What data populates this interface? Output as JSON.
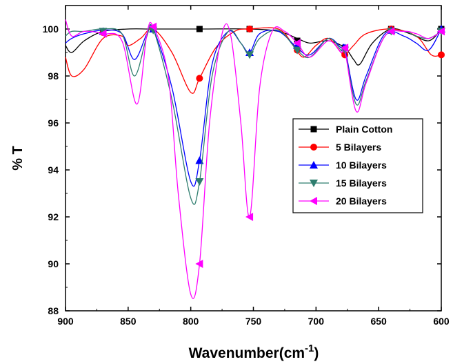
{
  "chart_data": {
    "type": "line",
    "title": "",
    "xlabel": "Wavenumber(cm",
    "xlabel_sup": "-1",
    "xlabel_close": ")",
    "ylabel": "% T",
    "xlim": [
      900,
      600
    ],
    "ylim": [
      88,
      101
    ],
    "x_ticks": [
      900,
      850,
      800,
      750,
      700,
      650,
      600
    ],
    "y_ticks": [
      88,
      90,
      92,
      94,
      96,
      98,
      100
    ],
    "grid": false,
    "legend_position": "center-right",
    "series": [
      {
        "name": "Plain Cotton",
        "color": "#000000",
        "marker": "square",
        "points": [
          [
            900,
            99.3
          ],
          [
            895,
            99.0
          ],
          [
            885,
            99.5
          ],
          [
            870,
            99.9
          ],
          [
            850,
            100.0
          ],
          [
            830,
            100.0
          ],
          [
            793,
            100.0
          ],
          [
            753,
            100.0
          ],
          [
            730,
            99.9
          ],
          [
            715,
            99.6
          ],
          [
            705,
            99.4
          ],
          [
            690,
            99.5
          ],
          [
            677,
            99.2
          ],
          [
            670,
            98.7
          ],
          [
            665,
            98.5
          ],
          [
            655,
            99.4
          ],
          [
            640,
            100.0
          ],
          [
            625,
            99.8
          ],
          [
            610,
            99.5
          ],
          [
            600,
            100.0
          ]
        ],
        "markers": [
          [
            870,
            99.9
          ],
          [
            830,
            100.0
          ],
          [
            793,
            100.0
          ],
          [
            753,
            100.0
          ],
          [
            715,
            99.5
          ],
          [
            677,
            99.2
          ],
          [
            640,
            100.0
          ],
          [
            600,
            100.0
          ]
        ]
      },
      {
        "name": "5 Bilayers",
        "color": "#ff0000",
        "marker": "circle",
        "points": [
          [
            900,
            98.8
          ],
          [
            895,
            98.0
          ],
          [
            885,
            98.3
          ],
          [
            870,
            99.6
          ],
          [
            855,
            99.7
          ],
          [
            850,
            99.3
          ],
          [
            840,
            99.6
          ],
          [
            830,
            100.0
          ],
          [
            815,
            99.0
          ],
          [
            800,
            97.3
          ],
          [
            793,
            97.9
          ],
          [
            780,
            99.2
          ],
          [
            765,
            99.9
          ],
          [
            753,
            100.0
          ],
          [
            730,
            100.0
          ],
          [
            718,
            99.3
          ],
          [
            710,
            98.8
          ],
          [
            700,
            99.3
          ],
          [
            690,
            99.6
          ],
          [
            680,
            99.0
          ],
          [
            677,
            98.9
          ],
          [
            670,
            99.3
          ],
          [
            660,
            99.8
          ],
          [
            640,
            100.0
          ],
          [
            620,
            99.7
          ],
          [
            608,
            98.9
          ],
          [
            600,
            98.9
          ]
        ],
        "markers": [
          [
            870,
            99.85
          ],
          [
            830,
            100.0
          ],
          [
            793,
            97.9
          ],
          [
            753,
            100.0
          ],
          [
            715,
            99.1
          ],
          [
            677,
            98.9
          ],
          [
            640,
            100.0
          ],
          [
            600,
            98.9
          ]
        ]
      },
      {
        "name": "10 Bilayers",
        "color": "#0000ff",
        "marker": "triangle-up",
        "points": [
          [
            900,
            99.4
          ],
          [
            895,
            99.6
          ],
          [
            885,
            99.8
          ],
          [
            870,
            99.95
          ],
          [
            855,
            99.8
          ],
          [
            845,
            98.7
          ],
          [
            835,
            99.8
          ],
          [
            830,
            100.0
          ],
          [
            815,
            97.5
          ],
          [
            800,
            93.5
          ],
          [
            793,
            94.4
          ],
          [
            783,
            98.5
          ],
          [
            770,
            99.9
          ],
          [
            760,
            99.4
          ],
          [
            753,
            99.0
          ],
          [
            745,
            99.8
          ],
          [
            730,
            99.9
          ],
          [
            715,
            99.2
          ],
          [
            705,
            98.9
          ],
          [
            690,
            99.6
          ],
          [
            680,
            99.2
          ],
          [
            677,
            99.2
          ],
          [
            668,
            97.0
          ],
          [
            660,
            98.0
          ],
          [
            645,
            99.8
          ],
          [
            630,
            99.7
          ],
          [
            620,
            99.4
          ],
          [
            610,
            99.1
          ],
          [
            600,
            100.0
          ]
        ],
        "markers": [
          [
            870,
            99.9
          ],
          [
            830,
            100.0
          ],
          [
            793,
            94.4
          ],
          [
            753,
            99.0
          ],
          [
            715,
            99.3
          ],
          [
            677,
            99.2
          ],
          [
            640,
            99.95
          ],
          [
            600,
            100.0
          ]
        ]
      },
      {
        "name": "15 Bilayers",
        "color": "#2e7d6e",
        "marker": "triangle-down",
        "points": [
          [
            900,
            99.7
          ],
          [
            895,
            99.9
          ],
          [
            885,
            99.9
          ],
          [
            870,
            100.0
          ],
          [
            855,
            99.8
          ],
          [
            845,
            98.0
          ],
          [
            835,
            99.7
          ],
          [
            830,
            100.0
          ],
          [
            815,
            97.0
          ],
          [
            800,
            92.8
          ],
          [
            793,
            93.5
          ],
          [
            783,
            98.0
          ],
          [
            770,
            99.9
          ],
          [
            760,
            99.4
          ],
          [
            753,
            98.9
          ],
          [
            745,
            99.6
          ],
          [
            730,
            99.95
          ],
          [
            715,
            99.1
          ],
          [
            705,
            98.8
          ],
          [
            690,
            99.6
          ],
          [
            680,
            99.1
          ],
          [
            677,
            99.1
          ],
          [
            668,
            96.8
          ],
          [
            660,
            97.8
          ],
          [
            645,
            99.7
          ],
          [
            630,
            99.9
          ],
          [
            620,
            99.7
          ],
          [
            610,
            99.6
          ],
          [
            600,
            99.9
          ]
        ],
        "markers": [
          [
            870,
            99.9
          ],
          [
            830,
            99.95
          ],
          [
            793,
            93.5
          ],
          [
            753,
            98.9
          ],
          [
            715,
            99.1
          ],
          [
            677,
            99.1
          ],
          [
            640,
            99.9
          ],
          [
            600,
            99.9
          ]
        ]
      },
      {
        "name": "20 Bilayers",
        "color": "#ff00ff",
        "marker": "triangle-left",
        "points": [
          [
            900,
            100.4
          ],
          [
            895,
            99.7
          ],
          [
            885,
            99.9
          ],
          [
            870,
            99.8
          ],
          [
            855,
            99.5
          ],
          [
            843,
            96.8
          ],
          [
            835,
            99.8
          ],
          [
            830,
            100.1
          ],
          [
            818,
            98.0
          ],
          [
            810,
            93.0
          ],
          [
            800,
            88.7
          ],
          [
            793,
            90.0
          ],
          [
            785,
            96.0
          ],
          [
            775,
            99.8
          ],
          [
            768,
            99.7
          ],
          [
            760,
            96.0
          ],
          [
            753,
            92.0
          ],
          [
            745,
            97.5
          ],
          [
            735,
            99.9
          ],
          [
            725,
            99.9
          ],
          [
            715,
            99.4
          ],
          [
            705,
            98.8
          ],
          [
            690,
            99.5
          ],
          [
            680,
            99.0
          ],
          [
            677,
            99.1
          ],
          [
            668,
            96.5
          ],
          [
            660,
            97.7
          ],
          [
            645,
            99.7
          ],
          [
            630,
            99.9
          ],
          [
            620,
            99.8
          ],
          [
            610,
            99.6
          ],
          [
            600,
            99.9
          ]
        ],
        "markers": [
          [
            870,
            99.8
          ],
          [
            830,
            100.1
          ],
          [
            793,
            90.0
          ],
          [
            753,
            92.0
          ],
          [
            715,
            99.4
          ],
          [
            677,
            99.2
          ],
          [
            640,
            99.9
          ],
          [
            600,
            99.9
          ]
        ]
      }
    ]
  }
}
